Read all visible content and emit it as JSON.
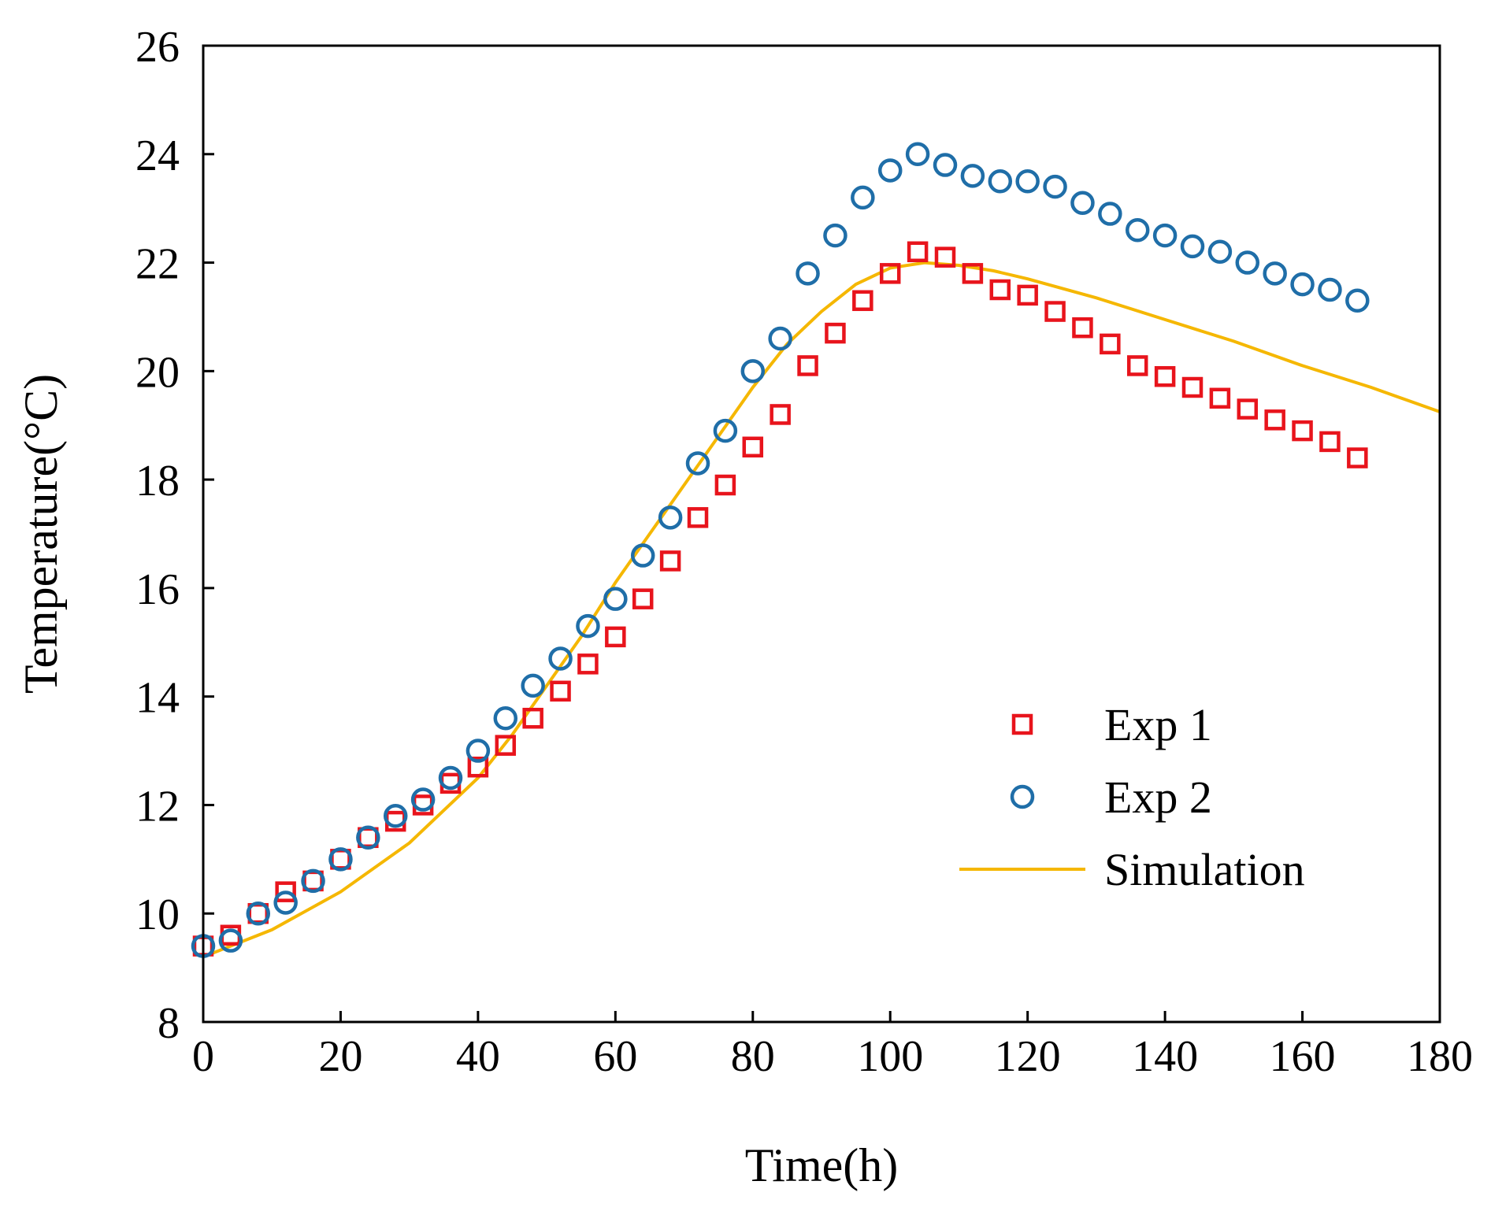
{
  "chart_data": {
    "type": "scatter",
    "title": "",
    "xlabel": "Time(h)",
    "ylabel": "Temperature(°C)",
    "xlim": [
      0,
      180
    ],
    "ylim": [
      8,
      26
    ],
    "xticks": [
      0,
      20,
      40,
      60,
      80,
      100,
      120,
      140,
      160,
      180
    ],
    "yticks": [
      8,
      10,
      12,
      14,
      16,
      18,
      20,
      22,
      24,
      26
    ],
    "grid": false,
    "legend_position": "right",
    "series": [
      {
        "name": "Exp 1",
        "kind": "scatter",
        "marker": "square",
        "color": "#e8141c",
        "x": [
          0,
          4,
          8,
          12,
          16,
          20,
          24,
          28,
          32,
          36,
          40,
          44,
          48,
          52,
          56,
          60,
          64,
          68,
          72,
          76,
          80,
          84,
          88,
          92,
          96,
          100,
          104,
          108,
          112,
          116,
          120,
          124,
          128,
          132,
          136,
          140,
          144,
          148,
          152,
          156,
          160,
          164,
          168
        ],
        "y": [
          9.4,
          9.6,
          10.0,
          10.4,
          10.6,
          11.0,
          11.4,
          11.7,
          12.0,
          12.4,
          12.7,
          13.1,
          13.6,
          14.1,
          14.6,
          15.1,
          15.8,
          16.5,
          17.3,
          17.9,
          18.6,
          19.2,
          20.1,
          20.7,
          21.3,
          21.8,
          22.2,
          22.1,
          21.8,
          21.5,
          21.4,
          21.1,
          20.8,
          20.5,
          20.1,
          19.9,
          19.7,
          19.5,
          19.3,
          19.1,
          18.9,
          18.7,
          18.4
        ]
      },
      {
        "name": "Exp 2",
        "kind": "scatter",
        "marker": "circle",
        "color": "#1f6ea8",
        "x": [
          0,
          4,
          8,
          12,
          16,
          20,
          24,
          28,
          32,
          36,
          40,
          44,
          48,
          52,
          56,
          60,
          64,
          68,
          72,
          76,
          80,
          84,
          88,
          92,
          96,
          100,
          104,
          108,
          112,
          116,
          120,
          124,
          128,
          132,
          136,
          140,
          144,
          148,
          152,
          156,
          160,
          164,
          168
        ],
        "y": [
          9.4,
          9.5,
          10.0,
          10.2,
          10.6,
          11.0,
          11.4,
          11.8,
          12.1,
          12.5,
          13.0,
          13.6,
          14.2,
          14.7,
          15.3,
          15.8,
          16.6,
          17.3,
          18.3,
          18.9,
          20.0,
          20.6,
          21.8,
          22.5,
          23.2,
          23.7,
          24.0,
          23.8,
          23.6,
          23.5,
          23.5,
          23.4,
          23.1,
          22.9,
          22.6,
          22.5,
          22.3,
          22.2,
          22.0,
          21.8,
          21.6,
          21.5,
          21.3
        ]
      },
      {
        "name": "Simulation",
        "kind": "line",
        "color": "#f5b700",
        "x": [
          0,
          10,
          20,
          30,
          40,
          45,
          50,
          55,
          60,
          65,
          70,
          75,
          80,
          85,
          90,
          95,
          100,
          105,
          110,
          115,
          120,
          130,
          140,
          150,
          160,
          170,
          180
        ],
        "y": [
          9.2,
          9.7,
          10.4,
          11.3,
          12.5,
          13.3,
          14.2,
          15.1,
          16.1,
          17.0,
          17.9,
          18.8,
          19.7,
          20.5,
          21.1,
          21.6,
          21.9,
          22.0,
          21.95,
          21.85,
          21.7,
          21.35,
          20.95,
          20.55,
          20.1,
          19.7,
          19.25
        ]
      }
    ]
  }
}
